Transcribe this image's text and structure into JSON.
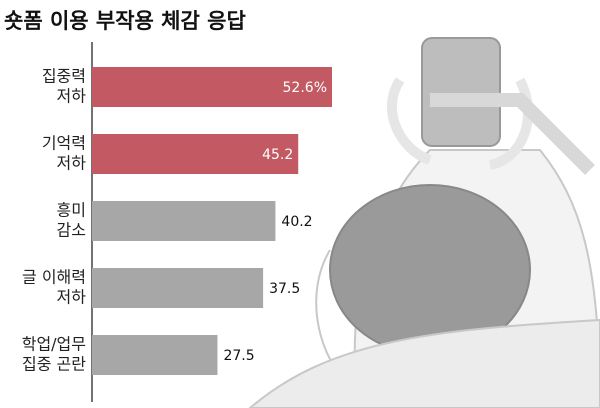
{
  "chart_data": {
    "type": "bar",
    "orientation": "horizontal",
    "title": "숏폼 이용 부작용 체감 응답",
    "categories": [
      [
        "집중력",
        "저하"
      ],
      [
        "기억력",
        "저하"
      ],
      [
        "흥미",
        "감소"
      ],
      [
        "글 이해력",
        "저하"
      ],
      [
        "학업/업무",
        "집중 곤란"
      ]
    ],
    "values": [
      52.6,
      45.2,
      40.2,
      37.5,
      27.5
    ],
    "value_labels": [
      "52.6%",
      "45.2",
      "40.2",
      "37.5",
      "27.5"
    ],
    "colors": [
      "#c35a63",
      "#c35a63",
      "#a7a7a7",
      "#a7a7a7",
      "#a7a7a7"
    ]
  }
}
